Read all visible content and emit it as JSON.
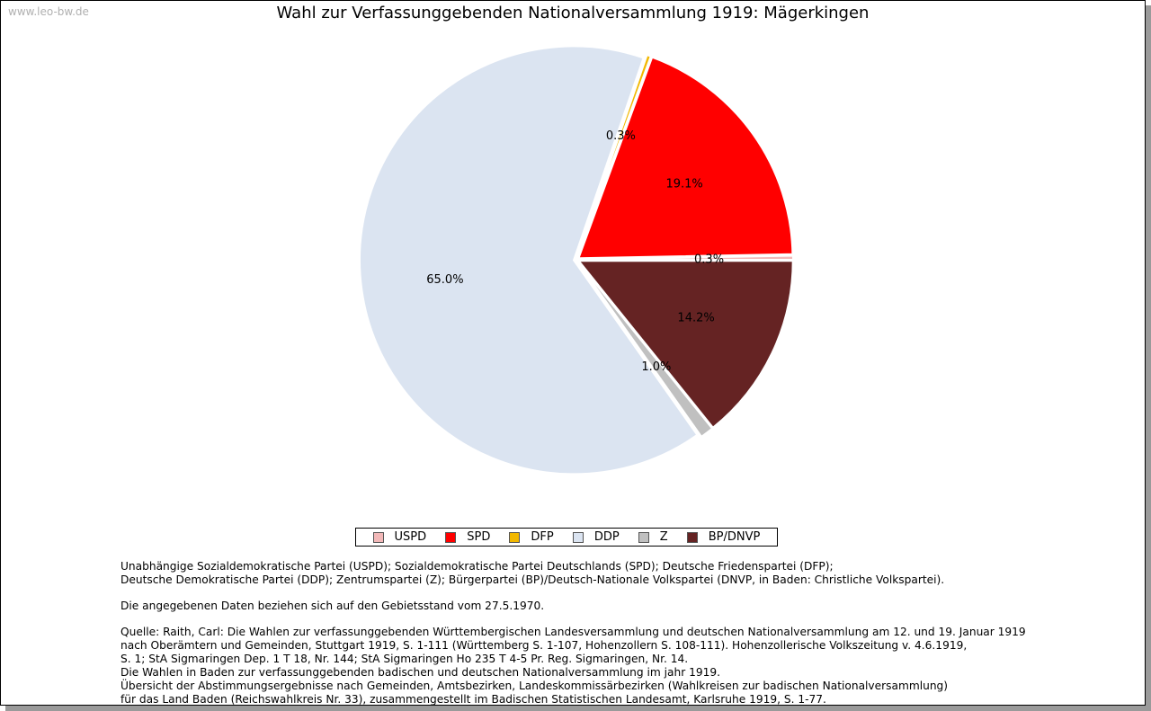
{
  "watermark": "www.leo-bw.de",
  "chart_data": {
    "type": "pie",
    "title": "Wahl zur Verfassunggebenden Nationalversammlung 1919: Mägerkingen",
    "slices": [
      {
        "name": "USPD",
        "value": 0.3,
        "label": "0.3%",
        "color": "#f2b8b8"
      },
      {
        "name": "SPD",
        "value": 19.1,
        "label": "19.1%",
        "color": "#ff0000"
      },
      {
        "name": "DFP",
        "value": 0.3,
        "label": "0.3%",
        "color": "#f2b800"
      },
      {
        "name": "DDP",
        "value": 65.0,
        "label": "65.0%",
        "color": "#dbe4f1"
      },
      {
        "name": "Z",
        "value": 1.0,
        "label": "1.0%",
        "color": "#c0c0c0"
      },
      {
        "name": "BP/DNVP",
        "value": 14.2,
        "label": "14.2%",
        "color": "#652323"
      }
    ],
    "legend_position": "bottom"
  },
  "notes": {
    "parties_line1": "Unabhängige Sozialdemokratische Partei (USPD); Sozialdemokratische Partei Deutschlands (SPD); Deutsche Friedenspartei (DFP);",
    "parties_line2": "Deutsche Demokratische Partei (DDP); Zentrumspartei (Z); Bürgerpartei (BP)/Deutsch-Nationale Volkspartei (DNVP, in Baden: Christliche Volkspartei).",
    "territory": "Die angegebenen Daten beziehen sich auf den Gebietsstand vom 27.5.1970.",
    "source": "Quelle: Raith, Carl: Die Wahlen zur verfassunggebenden Württembergischen Landesversammlung und deutschen Nationalversammlung am 12. und 19. Januar 1919\nnach Oberämtern und Gemeinden, Stuttgart 1919, S. 1-111 (Württemberg S. 1-107, Hohenzollern S. 108-111). Hohenzollerische Volkszeitung v. 4.6.1919,\nS. 1; StA Sigmaringen Dep. 1 T 18, Nr. 144; StA Sigmaringen Ho 235 T 4-5 Pr. Reg. Sigmaringen, Nr. 14.\nDie Wahlen in Baden zur verfassunggebenden badischen und deutschen Nationalversammlung im jahr 1919.\nÜbersicht der Abstimmungsergebnisse nach Gemeinden, Amtsbezirken, Landeskommissärbezirken (Wahlkreisen zur badischen Nationalversammlung)\nfür das Land Baden (Reichswahlkreis Nr. 33), zusammengestellt im Badischen Statistischen Landesamt, Karlsruhe 1919, S. 1-77."
  }
}
